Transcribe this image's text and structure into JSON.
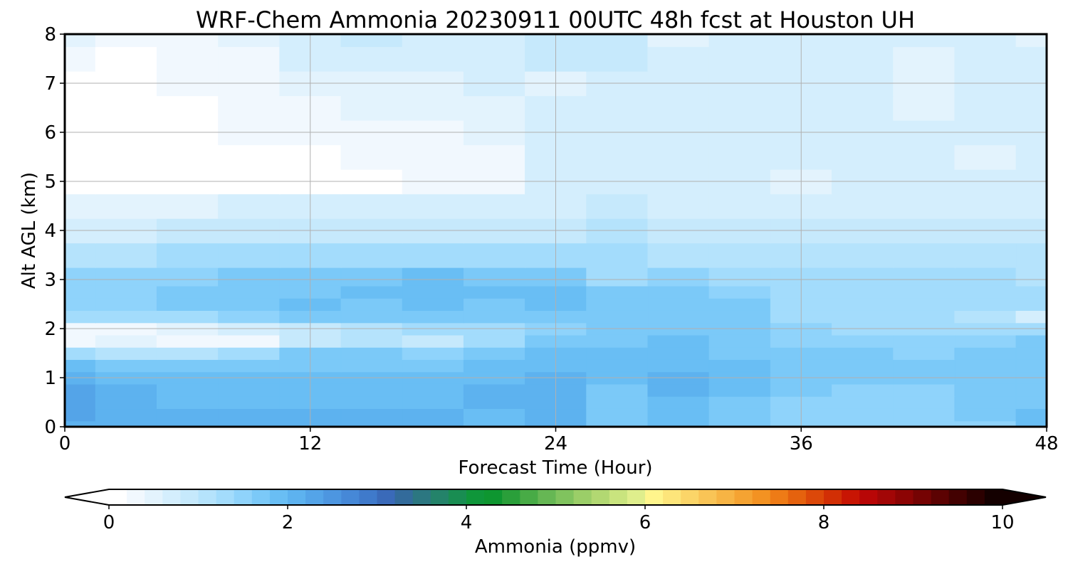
{
  "chart_data": {
    "type": "heatmap",
    "title": "WRF-Chem Ammonia  20230911 00UTC 48h fcst at Houston UH",
    "xlabel": "Forecast Time (Hour)",
    "ylabel": "Alt AGL (km)",
    "xlim": [
      0,
      48
    ],
    "ylim": [
      0,
      8
    ],
    "xticks": [
      "0",
      "12",
      "24",
      "36",
      "48"
    ],
    "yticks": [
      "0",
      "1",
      "2",
      "3",
      "4",
      "5",
      "6",
      "7",
      "8"
    ],
    "grid": true,
    "colorbar": {
      "label": "Ammonia  (ppmv)",
      "range": [
        0,
        10
      ],
      "ticks": [
        "0",
        "2",
        "4",
        "6",
        "8",
        "10"
      ],
      "extend": "both",
      "colors": [
        "#ffffff",
        "#f1f8fe",
        "#e3f3fd",
        "#d4eefd",
        "#c6e9fc",
        "#b5e3fc",
        "#a3dcfc",
        "#8fd3fb",
        "#7bc9f8",
        "#69bef4",
        "#5db2ef",
        "#54a4e8",
        "#4d96e0",
        "#4688d7",
        "#3f7acb",
        "#3a6ab9",
        "#336b9b",
        "#2c7781",
        "#24836a",
        "#198d52",
        "#0f963a",
        "#0e9630",
        "#2a9f3a",
        "#48ab46",
        "#66b754",
        "#80c35e",
        "#9bce68",
        "#b2d872",
        "#c9e47e",
        "#dfee8c",
        "#fff58c",
        "#fde57a",
        "#fbd568",
        "#f9c456",
        "#f7b444",
        "#f5a332",
        "#f39222",
        "#ee7b16",
        "#e5620e",
        "#dc4809",
        "#d22f05",
        "#c81503",
        "#b80606",
        "#a20606",
        "#8c0404",
        "#750303",
        "#5c0202",
        "#430101",
        "#2b0000",
        "#140000"
      ]
    },
    "x": [
      0,
      3,
      6,
      9,
      12,
      15,
      18,
      21,
      24,
      27,
      30,
      33,
      36,
      39,
      42,
      45,
      48
    ],
    "y": [
      0,
      0.25,
      0.5,
      0.75,
      1,
      1.25,
      1.5,
      1.75,
      2,
      2.25,
      2.5,
      2.75,
      3,
      3.5,
      4,
      4.5,
      5,
      5.5,
      6,
      6.5,
      7,
      7.5,
      8
    ],
    "z": [
      [
        2.1,
        2.0,
        2.0,
        2.0,
        2.1,
        2.1,
        2.0,
        1.9,
        2.0,
        1.7,
        1.8,
        1.6,
        1.5,
        1.5,
        1.5,
        1.5,
        1.8
      ],
      [
        2.2,
        2.0,
        2.0,
        2.0,
        2.0,
        2.1,
        2.0,
        1.9,
        2.0,
        1.7,
        1.8,
        1.7,
        1.5,
        1.5,
        1.5,
        1.6,
        1.8
      ],
      [
        2.3,
        2.1,
        1.9,
        1.9,
        1.9,
        1.9,
        1.9,
        2.0,
        2.1,
        1.7,
        1.9,
        1.7,
        1.5,
        1.5,
        1.5,
        1.6,
        1.7
      ],
      [
        2.2,
        2.1,
        1.9,
        1.9,
        1.8,
        1.8,
        1.8,
        2.0,
        2.1,
        1.7,
        2.1,
        1.8,
        1.6,
        1.5,
        1.5,
        1.6,
        1.7
      ],
      [
        2.0,
        1.9,
        1.8,
        1.8,
        1.8,
        1.8,
        1.8,
        1.9,
        2.0,
        1.8,
        2.0,
        1.9,
        1.7,
        1.6,
        1.6,
        1.6,
        1.6
      ],
      [
        1.8,
        1.6,
        1.7,
        1.7,
        1.7,
        1.7,
        1.7,
        1.8,
        1.9,
        1.8,
        1.8,
        1.8,
        1.7,
        1.6,
        1.6,
        1.6,
        1.6
      ],
      [
        1.2,
        1.0,
        1.1,
        1.4,
        1.6,
        1.6,
        1.5,
        1.7,
        1.8,
        1.8,
        1.8,
        1.7,
        1.6,
        1.6,
        1.5,
        1.6,
        1.6
      ],
      [
        0.3,
        0.4,
        0.3,
        0.2,
        0.8,
        1.0,
        0.9,
        1.4,
        1.6,
        1.7,
        1.8,
        1.7,
        1.5,
        1.5,
        1.5,
        1.5,
        1.6
      ],
      [
        0.2,
        0.3,
        0.5,
        0.6,
        0.9,
        1.0,
        1.2,
        1.4,
        1.5,
        1.6,
        1.7,
        1.6,
        1.5,
        1.4,
        1.4,
        1.3,
        1.3
      ],
      [
        1.2,
        1.3,
        1.4,
        1.5,
        1.6,
        1.6,
        1.6,
        1.6,
        1.7,
        1.7,
        1.7,
        1.6,
        1.4,
        1.3,
        1.2,
        1.0,
        0.7
      ],
      [
        1.5,
        1.5,
        1.6,
        1.7,
        1.8,
        1.7,
        1.8,
        1.7,
        1.8,
        1.7,
        1.7,
        1.6,
        1.4,
        1.3,
        1.3,
        1.2,
        1.2
      ],
      [
        1.5,
        1.5,
        1.6,
        1.7,
        1.7,
        1.8,
        1.9,
        1.8,
        1.8,
        1.6,
        1.6,
        1.5,
        1.4,
        1.3,
        1.3,
        1.2,
        1.2
      ],
      [
        1.5,
        1.5,
        1.5,
        1.6,
        1.6,
        1.7,
        1.8,
        1.7,
        1.6,
        1.4,
        1.5,
        1.3,
        1.3,
        1.2,
        1.2,
        1.2,
        1.1
      ],
      [
        1.0,
        1.1,
        1.2,
        1.3,
        1.3,
        1.3,
        1.4,
        1.2,
        1.2,
        1.3,
        1.1,
        1.0,
        1.0,
        1.0,
        1.0,
        1.0,
        1.0
      ],
      [
        0.6,
        0.7,
        0.8,
        0.9,
        0.8,
        0.8,
        0.9,
        0.8,
        0.9,
        1.0,
        0.8,
        0.8,
        0.8,
        0.8,
        0.8,
        0.8,
        0.8
      ],
      [
        0.4,
        0.5,
        0.5,
        0.6,
        0.6,
        0.6,
        0.6,
        0.6,
        0.7,
        0.8,
        0.7,
        0.7,
        0.6,
        0.6,
        0.7,
        0.7,
        0.7
      ],
      [
        0.1,
        0.1,
        0.1,
        0.1,
        0.1,
        0.1,
        0.3,
        0.3,
        0.6,
        0.7,
        0.7,
        0.6,
        0.5,
        0.6,
        0.6,
        0.6,
        0.6
      ],
      [
        0.0,
        0.0,
        0.1,
        0.1,
        0.1,
        0.2,
        0.2,
        0.3,
        0.6,
        0.7,
        0.7,
        0.6,
        0.6,
        0.6,
        0.6,
        0.5,
        0.6
      ],
      [
        0.0,
        0.0,
        0.1,
        0.2,
        0.2,
        0.3,
        0.3,
        0.4,
        0.6,
        0.6,
        0.7,
        0.7,
        0.7,
        0.6,
        0.6,
        0.6,
        0.6
      ],
      [
        0.1,
        0.0,
        0.1,
        0.2,
        0.3,
        0.4,
        0.5,
        0.5,
        0.6,
        0.6,
        0.7,
        0.7,
        0.7,
        0.6,
        0.5,
        0.6,
        0.6
      ],
      [
        0.1,
        0.1,
        0.2,
        0.3,
        0.4,
        0.4,
        0.5,
        0.6,
        0.5,
        0.6,
        0.6,
        0.7,
        0.7,
        0.6,
        0.5,
        0.7,
        0.6
      ],
      [
        0.3,
        0.1,
        0.2,
        0.3,
        0.6,
        0.7,
        0.6,
        0.6,
        0.8,
        0.8,
        0.6,
        0.6,
        0.7,
        0.6,
        0.5,
        0.6,
        0.6
      ],
      [
        0.4,
        0.2,
        0.2,
        0.4,
        0.6,
        0.8,
        0.6,
        0.6,
        0.9,
        0.8,
        0.5,
        0.6,
        0.7,
        0.6,
        0.6,
        0.6,
        0.5
      ]
    ]
  }
}
